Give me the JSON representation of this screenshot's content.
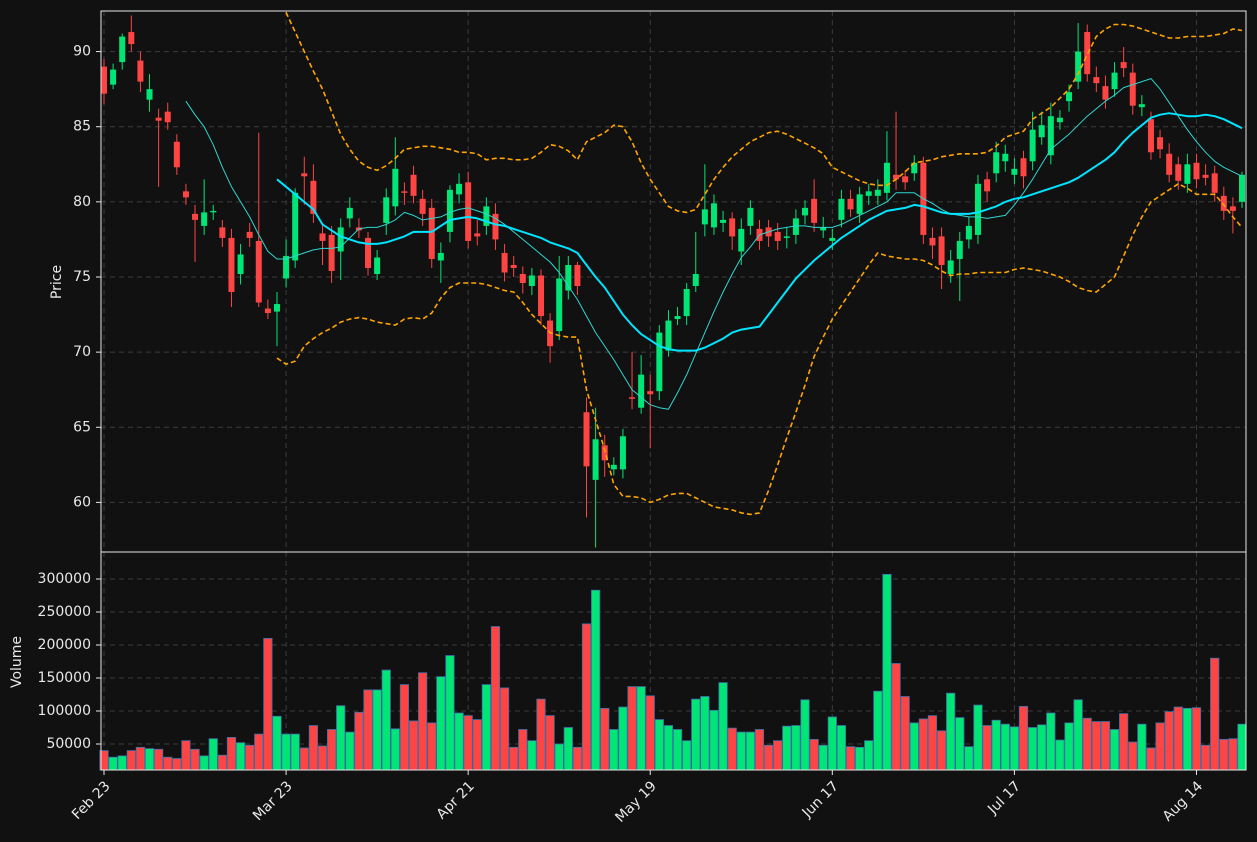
{
  "chart_data": {
    "type": "candlestick",
    "ylabel": "Price",
    "ylim": [
      56.7,
      92.7
    ],
    "yticks": [
      60,
      65,
      70,
      75,
      80,
      85,
      90
    ],
    "grid": true,
    "up_color": "#00e676",
    "down_color": "#ff4444",
    "categories": [
      "Feb 23",
      null,
      null,
      null,
      null,
      null,
      null,
      null,
      null,
      null,
      null,
      null,
      null,
      null,
      null,
      null,
      null,
      null,
      null,
      null,
      "Mar 23",
      null,
      null,
      null,
      null,
      null,
      null,
      null,
      null,
      null,
      null,
      null,
      null,
      null,
      null,
      null,
      null,
      null,
      null,
      null,
      "Apr 21",
      null,
      null,
      null,
      null,
      null,
      null,
      null,
      null,
      null,
      null,
      null,
      null,
      null,
      null,
      null,
      null,
      null,
      null,
      null,
      "May 19",
      null,
      null,
      null,
      null,
      null,
      null,
      null,
      null,
      null,
      null,
      null,
      null,
      null,
      null,
      null,
      null,
      null,
      null,
      null,
      "Jun 17",
      null,
      null,
      null,
      null,
      null,
      null,
      null,
      null,
      null,
      null,
      null,
      null,
      null,
      null,
      null,
      null,
      null,
      null,
      null,
      "Jul 17",
      null,
      null,
      null,
      null,
      null,
      null,
      null,
      null,
      null,
      null,
      null,
      null,
      null,
      null,
      null,
      null,
      null,
      null,
      null,
      "Aug 14",
      null,
      null,
      null,
      null,
      null
    ],
    "open": [
      89.0,
      87.8,
      89.3,
      91.3,
      89.4,
      86.8,
      85.6,
      86.0,
      84.0,
      80.7,
      79.2,
      78.4,
      79.3,
      78.3,
      77.6,
      75.2,
      78.0,
      77.4,
      72.9,
      72.7,
      74.9,
      76.1,
      81.9,
      81.4,
      77.9,
      77.8,
      76.7,
      78.9,
      78.3,
      77.6,
      75.2,
      78.6,
      79.7,
      80.7,
      81.8,
      80.2,
      79.6,
      76.1,
      78.0,
      80.5,
      81.3,
      77.9,
      78.4,
      79.2,
      76.6,
      75.8,
      75.2,
      74.4,
      75.1,
      72.1,
      71.4,
      74.1,
      75.8,
      66.0,
      61.5,
      63.8,
      62.2,
      62.2,
      67.0,
      66.3,
      67.4,
      67.4,
      70.1,
      72.2,
      72.4,
      74.4,
      78.5,
      78.3,
      78.6,
      78.9,
      76.7,
      78.4,
      78.2,
      78.3,
      78.0,
      77.6,
      77.8,
      79.1,
      80.2,
      78.1,
      77.4,
      78.8,
      80.2,
      79.2,
      80.4,
      80.4,
      80.6,
      81.8,
      81.7,
      81.9,
      82.6,
      77.6,
      77.7,
      75.2,
      76.2,
      77.5,
      77.8,
      81.5,
      81.9,
      82.7,
      81.8,
      82.9,
      82.7,
      84.3,
      83.1,
      85.3,
      86.7,
      88.0,
      91.3,
      88.3,
      87.7,
      87.5,
      89.3,
      88.6,
      86.3,
      85.5,
      84.3,
      83.2,
      82.5,
      81.2,
      82.6,
      81.8,
      81.9,
      80.4,
      79.7,
      80.0
    ],
    "high": [
      89.5,
      89.2,
      91.2,
      92.4,
      90.0,
      88.5,
      86.2,
      86.6,
      84.5,
      81.2,
      79.8,
      81.5,
      79.8,
      78.8,
      78.2,
      77.2,
      78.6,
      84.6,
      73.5,
      74.0,
      77.5,
      80.9,
      83.0,
      82.5,
      78.5,
      78.4,
      78.9,
      80.3,
      78.9,
      78.0,
      76.8,
      80.9,
      84.3,
      81.3,
      82.4,
      80.8,
      80.2,
      77.3,
      81.1,
      81.9,
      82.0,
      78.8,
      80.3,
      79.9,
      77.2,
      76.4,
      75.7,
      75.6,
      75.5,
      72.6,
      76.4,
      76.4,
      76.0,
      67.0,
      66.3,
      64.5,
      63.0,
      64.9,
      70.0,
      69.8,
      68.5,
      71.8,
      72.8,
      73.0,
      74.6,
      78.0,
      82.5,
      80.5,
      79.4,
      79.3,
      78.9,
      80.1,
      78.8,
      78.8,
      78.6,
      78.3,
      79.5,
      80.1,
      81.5,
      79.0,
      78.2,
      80.8,
      80.8,
      81.0,
      81.2,
      81.5,
      84.7,
      86.0,
      82.1,
      83.1,
      83.0,
      78.3,
      78.3,
      76.8,
      78.0,
      79.0,
      81.8,
      82.0,
      84.0,
      83.8,
      82.9,
      83.4,
      86.0,
      86.0,
      86.6,
      86.1,
      87.8,
      91.9,
      91.8,
      89.0,
      88.4,
      89.3,
      90.3,
      89.2,
      87.1,
      86.0,
      84.8,
      83.9,
      83.0,
      83.2,
      83.2,
      82.5,
      82.4,
      81.0,
      80.3,
      82.0
    ],
    "low": [
      86.5,
      87.5,
      88.8,
      90.0,
      87.3,
      86.0,
      81.0,
      84.8,
      81.8,
      79.8,
      76.0,
      77.8,
      78.8,
      77.0,
      73.0,
      74.5,
      77.0,
      73.0,
      72.2,
      70.4,
      74.3,
      75.6,
      79.8,
      78.6,
      75.8,
      74.6,
      74.8,
      78.3,
      77.6,
      75.1,
      74.8,
      77.8,
      79.1,
      79.8,
      79.9,
      78.4,
      75.6,
      74.6,
      77.3,
      79.9,
      76.9,
      77.1,
      77.8,
      76.8,
      74.7,
      75.0,
      73.9,
      73.8,
      71.8,
      69.3,
      70.8,
      73.5,
      73.8,
      59.0,
      57.0,
      61.7,
      61.8,
      61.6,
      66.2,
      65.9,
      63.6,
      66.8,
      69.7,
      71.8,
      71.8,
      74.0,
      77.7,
      77.8,
      78.0,
      76.8,
      75.8,
      77.8,
      76.8,
      77.0,
      76.8,
      76.9,
      77.2,
      78.5,
      78.0,
      77.6,
      76.8,
      78.3,
      79.0,
      78.6,
      79.8,
      79.8,
      80.1,
      80.8,
      80.8,
      81.4,
      77.2,
      76.2,
      74.2,
      74.6,
      73.4,
      76.9,
      77.2,
      80.0,
      81.3,
      82.0,
      81.2,
      80.9,
      82.1,
      83.8,
      82.5,
      84.8,
      86.0,
      87.5,
      88.0,
      87.3,
      86.2,
      87.0,
      88.3,
      85.8,
      85.7,
      82.8,
      82.9,
      81.3,
      80.8,
      80.6,
      80.9,
      81.1,
      80.0,
      78.8,
      77.9,
      79.6
    ],
    "close": [
      87.2,
      88.8,
      91.0,
      90.5,
      88.0,
      87.5,
      85.4,
      85.3,
      82.3,
      80.3,
      78.8,
      79.3,
      79.4,
      77.6,
      74.0,
      76.5,
      77.6,
      73.3,
      72.6,
      73.2,
      76.4,
      80.6,
      81.7,
      79.2,
      77.4,
      75.4,
      78.3,
      79.6,
      78.1,
      75.6,
      76.3,
      80.3,
      82.2,
      80.6,
      80.4,
      79.2,
      76.2,
      76.6,
      80.8,
      81.2,
      77.4,
      77.7,
      79.7,
      77.5,
      75.3,
      75.6,
      74.6,
      75.1,
      72.4,
      70.4,
      74.9,
      75.8,
      74.4,
      62.4,
      64.2,
      62.8,
      62.5,
      64.4,
      66.9,
      68.5,
      67.2,
      71.3,
      72.1,
      72.4,
      74.2,
      75.2,
      79.5,
      79.9,
      78.8,
      77.7,
      78.2,
      79.6,
      77.4,
      77.7,
      77.4,
      77.7,
      78.9,
      79.6,
      78.6,
      78.3,
      77.6,
      80.2,
      79.5,
      80.5,
      80.7,
      80.8,
      82.6,
      81.5,
      81.3,
      82.6,
      77.8,
      77.1,
      75.8,
      76.1,
      77.4,
      78.4,
      81.2,
      80.7,
      83.3,
      83.2,
      82.2,
      81.7,
      84.8,
      85.1,
      85.7,
      85.6,
      87.3,
      90.0,
      88.5,
      87.9,
      86.8,
      88.6,
      88.9,
      86.4,
      86.5,
      83.3,
      83.5,
      81.8,
      81.4,
      82.5,
      81.5,
      81.6,
      80.6,
      79.4,
      79.4,
      81.8
    ],
    "lines": [
      {
        "color": "#2fd6d0",
        "width": 1,
        "style": "solid",
        "values": [
          null,
          null,
          null,
          null,
          null,
          null,
          null,
          null,
          null,
          86.7,
          85.8,
          85.0,
          83.8,
          82.3,
          81.0,
          80.0,
          79.0,
          77.8,
          76.7,
          76.2,
          76.2,
          76.4,
          76.6,
          76.8,
          76.9,
          76.9,
          77.0,
          77.6,
          78.2,
          78.3,
          78.3,
          78.5,
          78.8,
          79.3,
          79.1,
          78.8,
          78.9,
          79.0,
          79.3,
          79.5,
          79.6,
          79.4,
          79.2,
          78.9,
          78.5,
          78.0,
          77.5,
          77.0,
          76.5,
          76.0,
          75.3,
          74.4,
          73.5,
          72.4,
          71.3,
          70.4,
          69.5,
          68.5,
          67.5,
          67.0,
          66.5,
          66.3,
          66.2,
          67.3,
          68.5,
          69.9,
          71.3,
          72.7,
          74.0,
          75.2,
          76.3,
          77.0,
          77.8,
          78.0,
          78.2,
          78.3,
          78.4,
          78.4,
          78.3,
          78.3,
          78.3,
          78.5,
          78.8,
          79.1,
          79.4,
          79.7,
          80.0,
          80.6,
          80.6,
          80.6,
          80.2,
          79.9,
          79.5,
          79.2,
          79.1,
          79.0,
          79.0,
          78.9,
          79.0,
          79.1,
          79.8,
          80.6,
          81.5,
          82.5,
          83.5,
          84.0,
          84.5,
          85.1,
          85.7,
          86.2,
          86.7,
          87.1,
          87.6,
          87.8,
          88.0,
          88.2,
          87.5,
          86.6,
          85.7,
          84.8,
          84.0,
          83.3,
          82.7,
          82.3,
          82.0,
          81.7
        ]
      },
      {
        "color": "#00e5ff",
        "width": 2,
        "style": "solid",
        "values": [
          null,
          null,
          null,
          null,
          null,
          null,
          null,
          null,
          null,
          null,
          null,
          null,
          null,
          null,
          null,
          null,
          null,
          null,
          null,
          81.5,
          81.0,
          80.5,
          80.0,
          79.5,
          78.5,
          78.1,
          77.7,
          77.5,
          77.3,
          77.2,
          77.2,
          77.3,
          77.5,
          77.7,
          78.0,
          78.0,
          78.0,
          78.4,
          78.8,
          78.9,
          79.0,
          78.9,
          78.7,
          78.5,
          78.4,
          78.2,
          78.0,
          77.8,
          77.6,
          77.3,
          77.1,
          76.9,
          76.6,
          75.8,
          75.0,
          74.3,
          73.4,
          72.5,
          71.8,
          71.2,
          70.8,
          70.4,
          70.2,
          70.1,
          70.1,
          70.1,
          70.3,
          70.6,
          70.9,
          71.3,
          71.5,
          71.6,
          71.7,
          72.5,
          73.3,
          74.1,
          74.9,
          75.5,
          76.1,
          76.6,
          77.1,
          77.6,
          78.0,
          78.4,
          78.8,
          79.1,
          79.4,
          79.5,
          79.6,
          79.8,
          79.7,
          79.5,
          79.3,
          79.2,
          79.2,
          79.2,
          79.3,
          79.5,
          79.7,
          80.0,
          80.2,
          80.3,
          80.5,
          80.7,
          80.9,
          81.1,
          81.3,
          81.6,
          82.0,
          82.4,
          82.8,
          83.3,
          84.0,
          84.6,
          85.1,
          85.6,
          85.8,
          85.9,
          85.8,
          85.7,
          85.7,
          85.8,
          85.7,
          85.5,
          85.2,
          84.9
        ]
      },
      {
        "color": "#ffa500",
        "width": 1.6,
        "style": "dashed",
        "values": [
          null,
          null,
          null,
          null,
          null,
          null,
          null,
          null,
          null,
          null,
          null,
          null,
          null,
          null,
          null,
          null,
          null,
          null,
          null,
          93.5,
          92.6,
          91.3,
          90.0,
          88.7,
          87.5,
          86.0,
          84.5,
          83.5,
          82.7,
          82.3,
          82.1,
          82.4,
          82.9,
          83.5,
          83.6,
          83.7,
          83.7,
          83.6,
          83.5,
          83.3,
          83.3,
          83.2,
          82.8,
          82.9,
          82.9,
          82.8,
          82.8,
          82.9,
          83.3,
          83.8,
          83.7,
          83.4,
          82.8,
          84.0,
          84.3,
          84.6,
          85.1,
          85.0,
          84.0,
          82.6,
          81.5,
          80.6,
          79.7,
          79.4,
          79.3,
          79.5,
          80.5,
          81.5,
          82.3,
          83.0,
          83.5,
          84.0,
          84.3,
          84.6,
          84.7,
          84.5,
          84.2,
          83.9,
          83.6,
          83.2,
          82.3,
          82.0,
          81.7,
          81.4,
          81.2,
          81.1,
          81.1,
          81.5,
          82.0,
          82.6,
          82.7,
          82.8,
          83.0,
          83.1,
          83.2,
          83.2,
          83.2,
          83.3,
          83.7,
          84.3,
          84.5,
          84.7,
          85.5,
          85.9,
          86.3,
          86.9,
          87.5,
          88.5,
          89.8,
          91.0,
          91.5,
          91.8,
          91.8,
          91.7,
          91.5,
          91.3,
          91.1,
          90.9,
          90.9,
          91.0,
          91.0,
          91.0,
          91.1,
          91.2,
          91.5,
          91.4
        ]
      },
      {
        "color": "#ffa500",
        "width": 1.6,
        "style": "dashed",
        "values": [
          null,
          null,
          null,
          null,
          null,
          null,
          null,
          null,
          null,
          null,
          null,
          null,
          null,
          null,
          null,
          null,
          null,
          null,
          null,
          69.6,
          69.2,
          69.4,
          70.4,
          70.9,
          71.3,
          71.6,
          72.0,
          72.2,
          72.3,
          72.2,
          72.0,
          71.9,
          71.8,
          72.2,
          72.3,
          72.2,
          72.6,
          73.6,
          74.3,
          74.6,
          74.6,
          74.6,
          74.5,
          74.3,
          74.1,
          74.0,
          73.3,
          72.5,
          71.9,
          71.3,
          71.1,
          71.0,
          71.0,
          67.5,
          65.5,
          63.5,
          61.2,
          60.4,
          60.4,
          60.3,
          60.0,
          60.2,
          60.5,
          60.6,
          60.6,
          60.3,
          60.0,
          59.7,
          59.6,
          59.5,
          59.3,
          59.2,
          59.3,
          60.8,
          62.5,
          64.3,
          66.0,
          67.8,
          69.7,
          71.0,
          72.2,
          73.1,
          74.0,
          74.9,
          75.8,
          76.6,
          76.4,
          76.3,
          76.2,
          76.2,
          76.1,
          75.8,
          75.4,
          75.1,
          75.2,
          75.2,
          75.3,
          75.3,
          75.3,
          75.3,
          75.5,
          75.6,
          75.5,
          75.4,
          75.2,
          75.0,
          74.7,
          74.3,
          74.1,
          74.0,
          74.5,
          75.0,
          76.4,
          77.8,
          79.0,
          80.0,
          80.4,
          80.8,
          81.2,
          80.9,
          80.5,
          80.5,
          80.5,
          79.8,
          79.0,
          78.3
        ]
      }
    ],
    "volume": {
      "ylabel": "Volume",
      "ylim": [
        10600,
        340900
      ],
      "yticks": [
        50000,
        100000,
        150000,
        200000,
        250000,
        300000
      ],
      "edge_color": "#3f6fa8",
      "values": [
        40000,
        30000,
        32000,
        40000,
        45000,
        43000,
        42000,
        30000,
        28000,
        55000,
        42000,
        32000,
        58000,
        33000,
        60000,
        52000,
        48000,
        65000,
        210000,
        92000,
        65000,
        65000,
        44000,
        78000,
        47000,
        72000,
        108000,
        68000,
        98000,
        132000,
        132000,
        162000,
        73000,
        140000,
        85000,
        158000,
        82000,
        152000,
        184000,
        97000,
        93000,
        87000,
        140000,
        228000,
        135000,
        45000,
        72000,
        55000,
        118000,
        93000,
        50000,
        75000,
        45000,
        232000,
        283000,
        104000,
        72000,
        106000,
        137000,
        137000,
        123000,
        87000,
        78000,
        72000,
        55000,
        118000,
        122000,
        101000,
        143000,
        74000,
        68000,
        68000,
        72000,
        48000,
        55000,
        77000,
        78000,
        117000,
        57000,
        48000,
        91000,
        78000,
        46000,
        45000,
        55000,
        130000,
        307000,
        172000,
        122000,
        82000,
        88000,
        93000,
        70000,
        127000,
        90000,
        46000,
        109000,
        78000,
        86000,
        80000,
        76000,
        107000,
        75000,
        79000,
        97000,
        56000,
        82000,
        117000,
        89000,
        84000,
        84000,
        72000,
        96000,
        53000,
        80000,
        44000,
        82000,
        99000,
        106000,
        104000,
        105000,
        48000,
        180000,
        57000,
        58000,
        80000
      ]
    }
  }
}
